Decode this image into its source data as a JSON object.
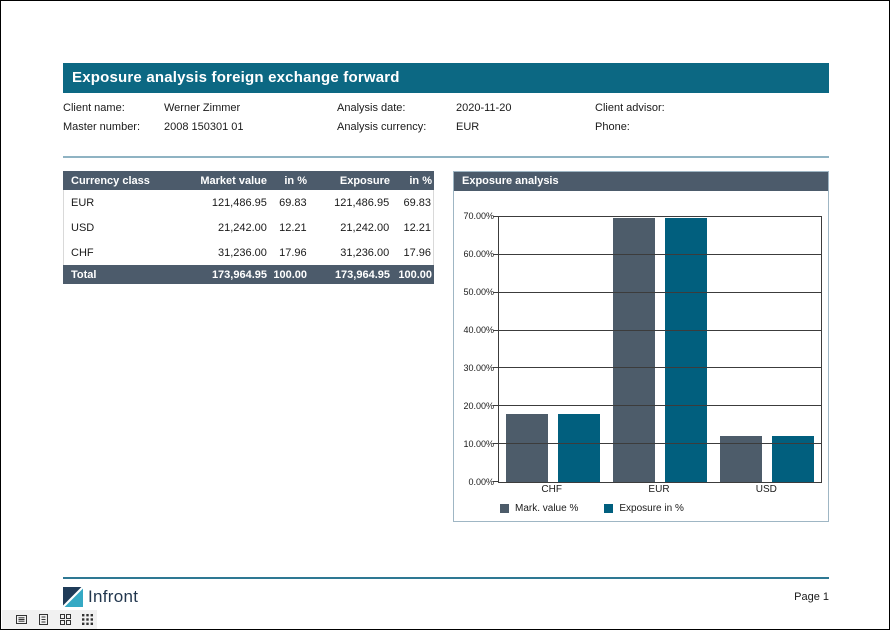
{
  "report": {
    "title": "Exposure analysis foreign exchange forward",
    "client_info": {
      "rows": [
        {
          "fields": [
            {
              "label": "Client name:",
              "value": "Werner Zimmer"
            },
            {
              "label": "Analysis date:",
              "value": "2020-11-20"
            },
            {
              "label": "Client advisor:",
              "value": ""
            }
          ]
        },
        {
          "fields": [
            {
              "label": "Master number:",
              "value": "2008 150301 01"
            },
            {
              "label": "Analysis currency:",
              "value": "EUR"
            },
            {
              "label": "Phone:",
              "value": ""
            }
          ]
        }
      ]
    },
    "table": {
      "headers": [
        "Currency class",
        "Market value",
        "in %",
        "Exposure",
        "in %"
      ],
      "rows": [
        [
          "EUR",
          "121,486.95",
          "69.83",
          "121,486.95",
          "69.83"
        ],
        [
          "USD",
          "21,242.00",
          "12.21",
          "21,242.00",
          "12.21"
        ],
        [
          "CHF",
          "31,236.00",
          "17.96",
          "31,236.00",
          "17.96"
        ]
      ],
      "total": [
        "Total",
        "173,964.95",
        "100.00",
        "173,964.95",
        "100.00"
      ]
    },
    "chart_title": "Exposure analysis",
    "footer": {
      "brand": "Infront",
      "page_label": "Page 1"
    }
  },
  "chart_data": {
    "type": "bar",
    "title": "Exposure analysis",
    "categories": [
      "CHF",
      "EUR",
      "USD"
    ],
    "series": [
      {
        "name": "Mark. value %",
        "values": [
          17.96,
          69.83,
          12.21
        ],
        "color": "#4D5C6A"
      },
      {
        "name": "Exposure in %",
        "values": [
          17.96,
          69.83,
          12.21
        ],
        "color": "#015F7E"
      }
    ],
    "ylim": [
      0,
      70
    ],
    "ytick_step": 10,
    "ytick_labels": [
      "0.00%",
      "10.00%",
      "20.00%",
      "30.00%",
      "40.00%",
      "50.00%",
      "60.00%",
      "70.00%"
    ],
    "grid": true,
    "legend_position": "bottom"
  },
  "colors": {
    "title_bar": "#0C6883",
    "section_header": "#4C5B6B",
    "bar_slate": "#4D5C6A",
    "bar_teal": "#015F7E",
    "divider_light": "#8FB3C3",
    "divider_footer": "#2E7893"
  },
  "toolbar": {
    "icons": [
      "outline-view",
      "page-view",
      "thumbnail-view",
      "grid-view"
    ]
  }
}
